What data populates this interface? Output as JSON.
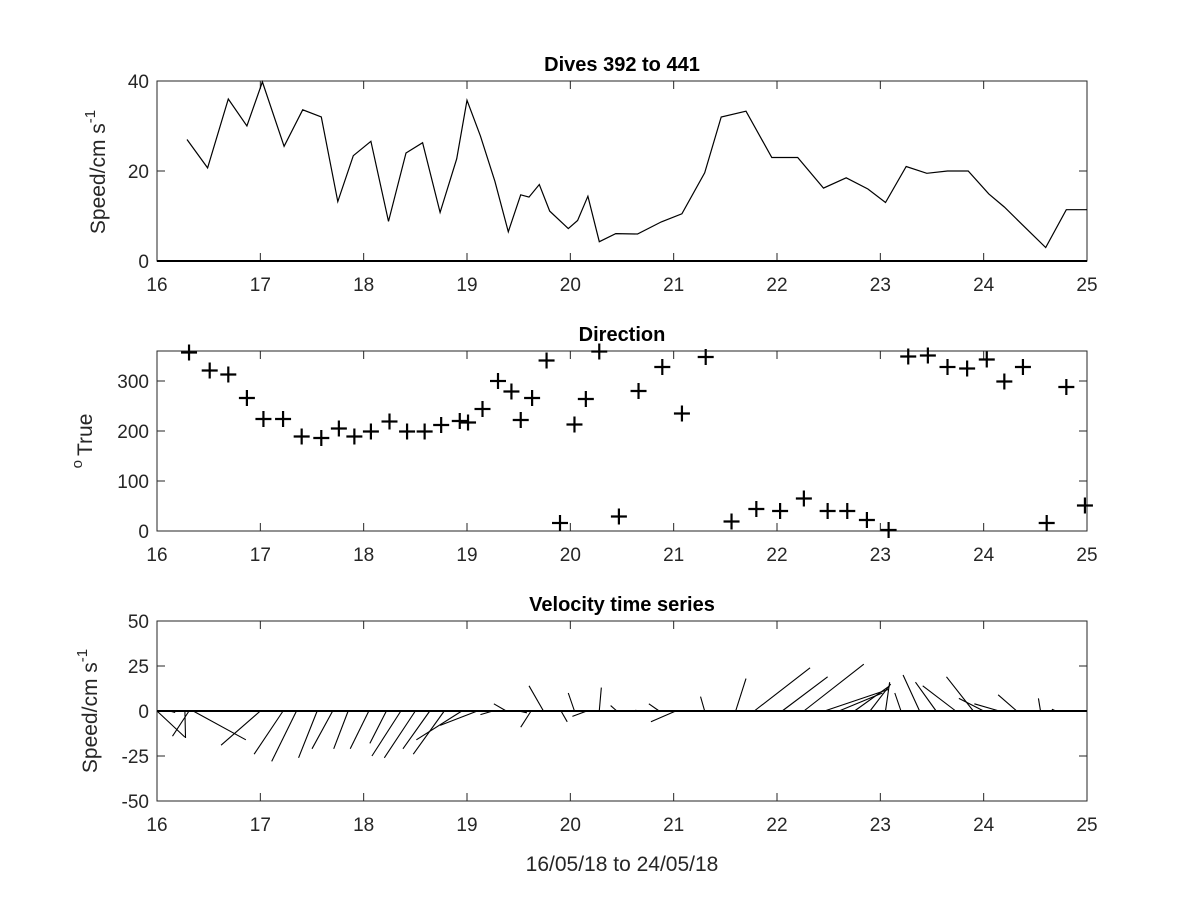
{
  "chart_data": [
    {
      "type": "line",
      "title": "Dives 392 to 441",
      "ylabel_main": "Speed/cm s",
      "ylabel_sup": "-1",
      "xlabel": "",
      "xlim": [
        16,
        25
      ],
      "ylim": [
        0,
        40
      ],
      "xticks": [
        "16",
        "17",
        "18",
        "19",
        "20",
        "21",
        "22",
        "23",
        "24",
        "25"
      ],
      "yticks": [
        "0",
        "20",
        "40"
      ],
      "series": [
        {
          "x": [
            16.29,
            16.49,
            16.69,
            16.87,
            17.02,
            17.23,
            17.41,
            17.59,
            17.75,
            17.9,
            18.07,
            18.24,
            18.41,
            18.57,
            18.74,
            18.9,
            19.0,
            19.13,
            19.27,
            19.4,
            19.52,
            19.6,
            19.7,
            19.8,
            19.98,
            20.07,
            20.17,
            20.28,
            20.44,
            20.65,
            20.88,
            21.08,
            21.3,
            21.46,
            21.7,
            21.95,
            22.2,
            22.45,
            22.67,
            22.88,
            23.05,
            23.25,
            23.45,
            23.65,
            23.85,
            24.05,
            24.2,
            24.4,
            24.6,
            24.8,
            25.0
          ],
          "y": [
            27,
            20.7,
            36,
            30,
            39.8,
            25.5,
            33.6,
            32,
            13.2,
            23.4,
            26.6,
            8.8,
            24,
            26.3,
            10.8,
            22.7,
            35.7,
            27.8,
            17.7,
            6.5,
            14.7,
            14.2,
            17,
            11.1,
            7.2,
            9,
            14.4,
            4.3,
            6.1,
            6,
            8.7,
            10.5,
            19.6,
            32,
            33.3,
            23,
            23,
            16.2,
            18.5,
            16,
            13,
            21,
            19.5,
            20,
            20,
            14.9,
            12,
            7.5,
            3,
            11.4,
            11.4
          ]
        }
      ],
      "zero_line": true
    },
    {
      "type": "scatter",
      "title": "Direction",
      "ylabel_main": "True",
      "ylabel_sup": "o",
      "xlim": [
        16,
        25
      ],
      "ylim": [
        0,
        360
      ],
      "xticks": [
        "16",
        "17",
        "18",
        "19",
        "20",
        "21",
        "22",
        "23",
        "24",
        "25"
      ],
      "yticks": [
        "0",
        "100",
        "200",
        "300"
      ],
      "marker": "+",
      "series": [
        {
          "x": [
            16.31,
            16.51,
            16.69,
            16.87,
            17.03,
            17.22,
            17.4,
            17.59,
            17.76,
            17.91,
            18.07,
            18.25,
            18.42,
            18.59,
            18.75,
            18.93,
            19.01,
            19.15,
            19.3,
            19.43,
            19.52,
            19.63,
            19.77,
            19.9,
            20.04,
            20.15,
            20.28,
            20.47,
            20.66,
            20.89,
            21.08,
            21.31,
            21.56,
            21.8,
            22.03,
            22.26,
            22.49,
            22.68,
            22.87,
            23.08,
            23.27,
            23.46,
            23.65,
            23.84,
            24.03,
            24.2,
            24.38,
            24.61,
            24.8,
            24.98
          ],
          "y": [
            357,
            321,
            313,
            266,
            224,
            224,
            189,
            186,
            205,
            189,
            199,
            219,
            199,
            199,
            212,
            220,
            217,
            244,
            300,
            279,
            222,
            266,
            341,
            16,
            213,
            264,
            359,
            29,
            280,
            328,
            235,
            348,
            19,
            44,
            40,
            65,
            40,
            40,
            22,
            2,
            349,
            351,
            328,
            325,
            343,
            299,
            328,
            16,
            288,
            51
          ]
        }
      ]
    },
    {
      "type": "quiver",
      "title": "Velocity time series",
      "ylabel_main": "Speed/cm s",
      "ylabel_sup": "-1",
      "xlabel": "16/05/18 to 24/05/18",
      "xlim": [
        16,
        25
      ],
      "ylim": [
        -50,
        50
      ],
      "xticks": [
        "16",
        "17",
        "18",
        "19",
        "20",
        "21",
        "22",
        "23",
        "24",
        "25"
      ],
      "yticks": [
        "-50",
        "-25",
        "0",
        "25",
        "50"
      ],
      "vectors": [
        {
          "x": 16.0,
          "u": 13.5,
          "v": -14.5
        },
        {
          "x": 16.12,
          "u": 2.8,
          "v": -0.8
        },
        {
          "x": 16.27,
          "u": 0.3,
          "v": -15
        },
        {
          "x": 16.35,
          "u": 25.5,
          "v": -16
        },
        {
          "x": 16.31,
          "u": -8,
          "v": -14
        },
        {
          "x": 16.82,
          "u": 0,
          "v": 0
        },
        {
          "x": 17.0,
          "u": -19,
          "v": -19
        },
        {
          "x": 17.22,
          "u": -14,
          "v": -24
        },
        {
          "x": 17.35,
          "u": -12,
          "v": -28
        },
        {
          "x": 17.55,
          "u": -9,
          "v": -26
        },
        {
          "x": 17.7,
          "u": -10,
          "v": -21
        },
        {
          "x": 17.85,
          "u": -7,
          "v": -21
        },
        {
          "x": 18.05,
          "u": -9,
          "v": -21
        },
        {
          "x": 18.22,
          "u": -8,
          "v": -18
        },
        {
          "x": 18.36,
          "u": -14,
          "v": -25
        },
        {
          "x": 18.5,
          "u": -15,
          "v": -26
        },
        {
          "x": 18.64,
          "u": -13,
          "v": -21
        },
        {
          "x": 18.78,
          "u": -15,
          "v": -24
        },
        {
          "x": 18.95,
          "u": -22,
          "v": -16
        },
        {
          "x": 19.1,
          "u": -18,
          "v": -8
        },
        {
          "x": 19.25,
          "u": -6,
          "v": -2
        },
        {
          "x": 19.38,
          "u": -6,
          "v": 4
        },
        {
          "x": 19.5,
          "u": 4,
          "v": -1
        },
        {
          "x": 19.62,
          "u": -5,
          "v": -9
        },
        {
          "x": 19.74,
          "u": -7,
          "v": 14
        },
        {
          "x": 19.91,
          "u": 3,
          "v": -6
        },
        {
          "x": 20.04,
          "u": -3,
          "v": 10
        },
        {
          "x": 20.16,
          "u": -7,
          "v": -3
        },
        {
          "x": 20.28,
          "u": 1,
          "v": 13
        },
        {
          "x": 20.45,
          "u": -3,
          "v": 3
        },
        {
          "x": 20.65,
          "u": -1,
          "v": 0.5
        },
        {
          "x": 20.86,
          "u": -5,
          "v": 4
        },
        {
          "x": 21.02,
          "u": -12,
          "v": -6
        },
        {
          "x": 21.3,
          "u": -2,
          "v": 8
        },
        {
          "x": 21.6,
          "u": 5,
          "v": 18
        },
        {
          "x": 21.78,
          "u": 27,
          "v": 24
        },
        {
          "x": 22.05,
          "u": 22,
          "v": 19
        },
        {
          "x": 22.26,
          "u": 29,
          "v": 26
        },
        {
          "x": 22.46,
          "u": 31,
          "v": 12
        },
        {
          "x": 22.6,
          "u": 21,
          "v": 10
        },
        {
          "x": 22.75,
          "u": 17,
          "v": 14
        },
        {
          "x": 22.9,
          "u": 10,
          "v": 15
        },
        {
          "x": 23.05,
          "u": 2,
          "v": 16
        },
        {
          "x": 23.2,
          "u": -3,
          "v": 10
        },
        {
          "x": 23.38,
          "u": -8,
          "v": 20
        },
        {
          "x": 23.54,
          "u": -10,
          "v": 16
        },
        {
          "x": 23.73,
          "u": -16,
          "v": 14
        },
        {
          "x": 23.9,
          "u": -13,
          "v": 19
        },
        {
          "x": 24.0,
          "u": -12,
          "v": 7
        },
        {
          "x": 24.15,
          "u": -12,
          "v": 4
        },
        {
          "x": 24.32,
          "u": -9,
          "v": 9
        },
        {
          "x": 24.55,
          "u": -1,
          "v": 7
        },
        {
          "x": 24.7,
          "u": -2,
          "v": 1
        }
      ]
    }
  ]
}
